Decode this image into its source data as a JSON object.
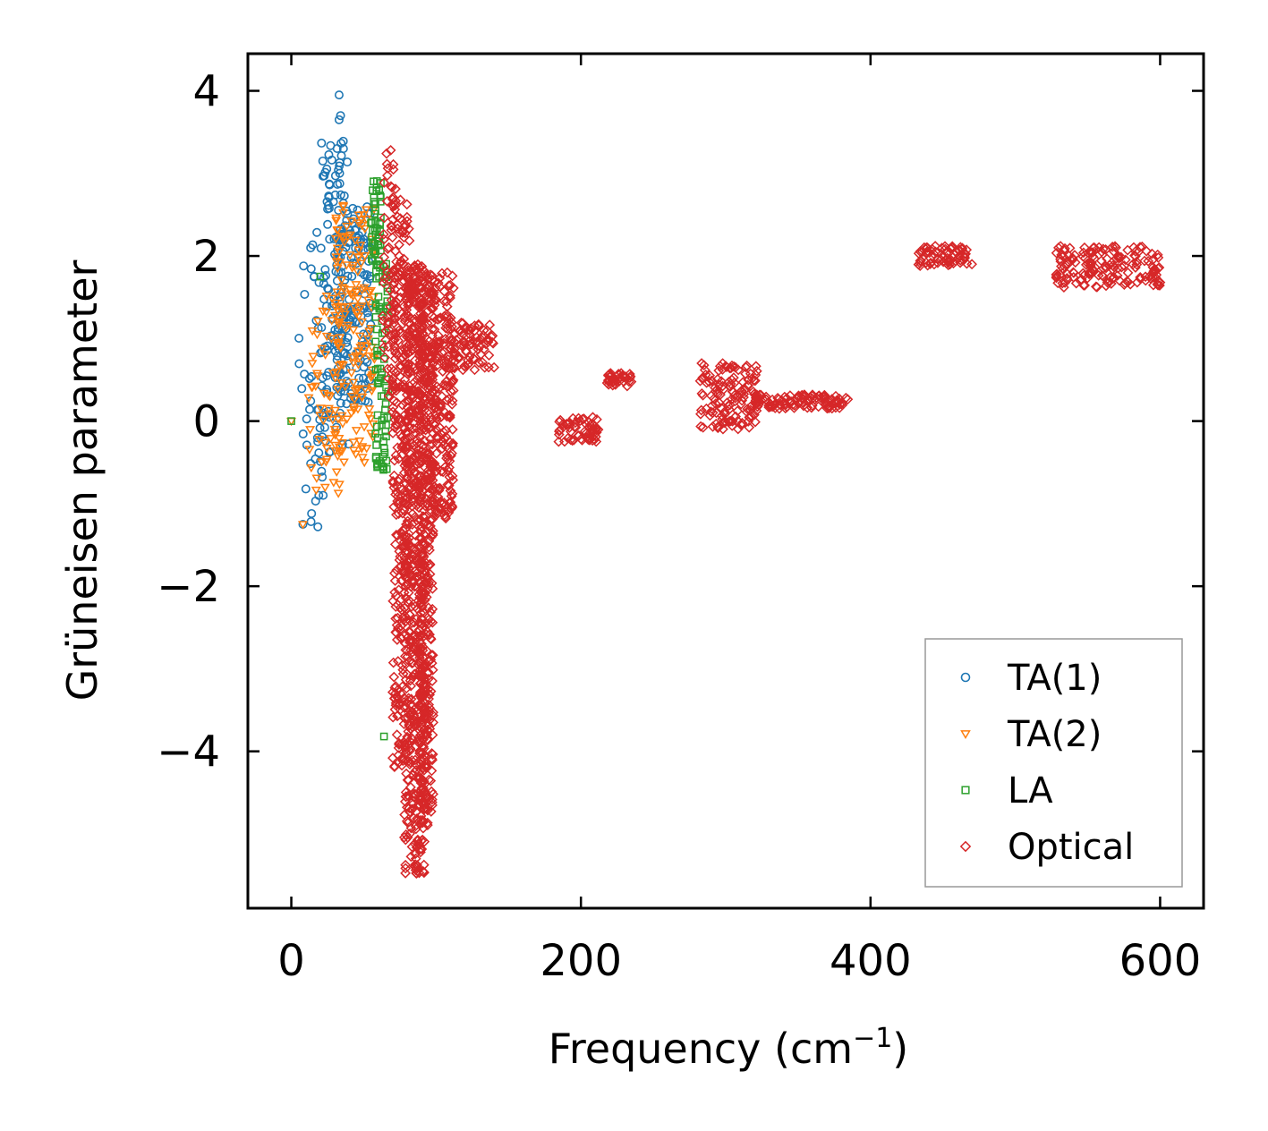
{
  "chart_data": {
    "type": "scatter",
    "title": "",
    "xlabel": "Frequency (cm",
    "xlabel_sup": "−1",
    "xlabel_close": ")",
    "ylabel": "Grüneisen parameter",
    "xlim": [
      -30,
      630
    ],
    "ylim": [
      -5.9,
      4.45
    ],
    "xticks": [
      0,
      200,
      400,
      600
    ],
    "xtick_labels": [
      "0",
      "200",
      "400",
      "600"
    ],
    "yticks": [
      4,
      2,
      0,
      -2,
      -4
    ],
    "ytick_labels": [
      "4",
      "2",
      "0",
      "−2",
      "−4"
    ],
    "grid": false,
    "legend_position": "lower-right",
    "colors": {
      "TA(1)": "#1f77b4",
      "TA(2)": "#ff7f0e",
      "LA": "#2ca02c",
      "Optical": "#d62728"
    },
    "series": [
      {
        "name": "TA(1)",
        "marker": "circle",
        "regions": [
          {
            "x": [
              5,
              25
            ],
            "y": [
              -1.3,
              2.3
            ],
            "n": 45
          },
          {
            "x": [
              20,
              40
            ],
            "y": [
              -0.4,
              3.4
            ],
            "n": 110
          },
          {
            "x": [
              30,
              55
            ],
            "y": [
              0.2,
              2.6
            ],
            "n": 150
          }
        ],
        "points": [
          [
            33,
            3.95
          ],
          [
            34,
            3.7
          ],
          [
            33,
            3.65
          ],
          [
            36,
            3.3
          ],
          [
            8,
            -1.25
          ],
          [
            14,
            -1.12
          ],
          [
            22,
            -0.9
          ]
        ]
      },
      {
        "name": "TA(2)",
        "marker": "triangle-down",
        "regions": [
          {
            "x": [
              12,
              35
            ],
            "y": [
              -0.9,
              1.6
            ],
            "n": 60
          },
          {
            "x": [
              30,
              58
            ],
            "y": [
              -0.5,
              2.7
            ],
            "n": 160
          }
        ],
        "points": [
          [
            0,
            0.0
          ],
          [
            8,
            -1.25
          ],
          [
            13,
            -0.1
          ],
          [
            52,
            2.45
          ]
        ]
      },
      {
        "name": "LA",
        "marker": "square",
        "regions": [
          {
            "x": [
              55,
              62
            ],
            "y": [
              1.8,
              2.95
            ],
            "n": 50
          },
          {
            "x": [
              58,
              67
            ],
            "y": [
              -0.6,
              1.95
            ],
            "n": 80
          }
        ],
        "points": [
          [
            0,
            0.0
          ],
          [
            20,
            1.75
          ],
          [
            64,
            -3.82
          ],
          [
            63,
            -0.55
          ]
        ]
      },
      {
        "name": "Optical",
        "marker": "diamond",
        "regions": [
          {
            "x": [
              63,
              72
            ],
            "y": [
              0.3,
              3.4
            ],
            "n": 70
          },
          {
            "x": [
              70,
              82
            ],
            "y": [
              -4.2,
              2.7
            ],
            "n": 300
          },
          {
            "x": [
              78,
              92
            ],
            "y": [
              -5.5,
              1.9
            ],
            "n": 550
          },
          {
            "x": [
              88,
              98
            ],
            "y": [
              -4.9,
              1.8
            ],
            "n": 400
          },
          {
            "x": [
              96,
              112
            ],
            "y": [
              -1.2,
              1.8
            ],
            "n": 220
          },
          {
            "x": [
              110,
              140
            ],
            "y": [
              0.6,
              1.2
            ],
            "n": 80
          },
          {
            "x": [
              184,
              212
            ],
            "y": [
              -0.25,
              0.05
            ],
            "n": 60
          },
          {
            "x": [
              218,
              236
            ],
            "y": [
              0.42,
              0.58
            ],
            "n": 40
          },
          {
            "x": [
              282,
              322
            ],
            "y": [
              -0.1,
              0.7
            ],
            "n": 130
          },
          {
            "x": [
              320,
              385
            ],
            "y": [
              0.15,
              0.32
            ],
            "n": 100
          },
          {
            "x": [
              433,
              467
            ],
            "y": [
              1.88,
              2.12
            ],
            "n": 70
          },
          {
            "x": [
              528,
              600
            ],
            "y": [
              1.62,
              2.12
            ],
            "n": 160
          }
        ],
        "points": [
          [
            87,
            -5.45
          ],
          [
            86,
            -5.3
          ],
          [
            140,
            0.65
          ],
          [
            383,
            0.28
          ],
          [
            470,
            1.9
          ],
          [
            600,
            1.68
          ]
        ]
      }
    ]
  }
}
